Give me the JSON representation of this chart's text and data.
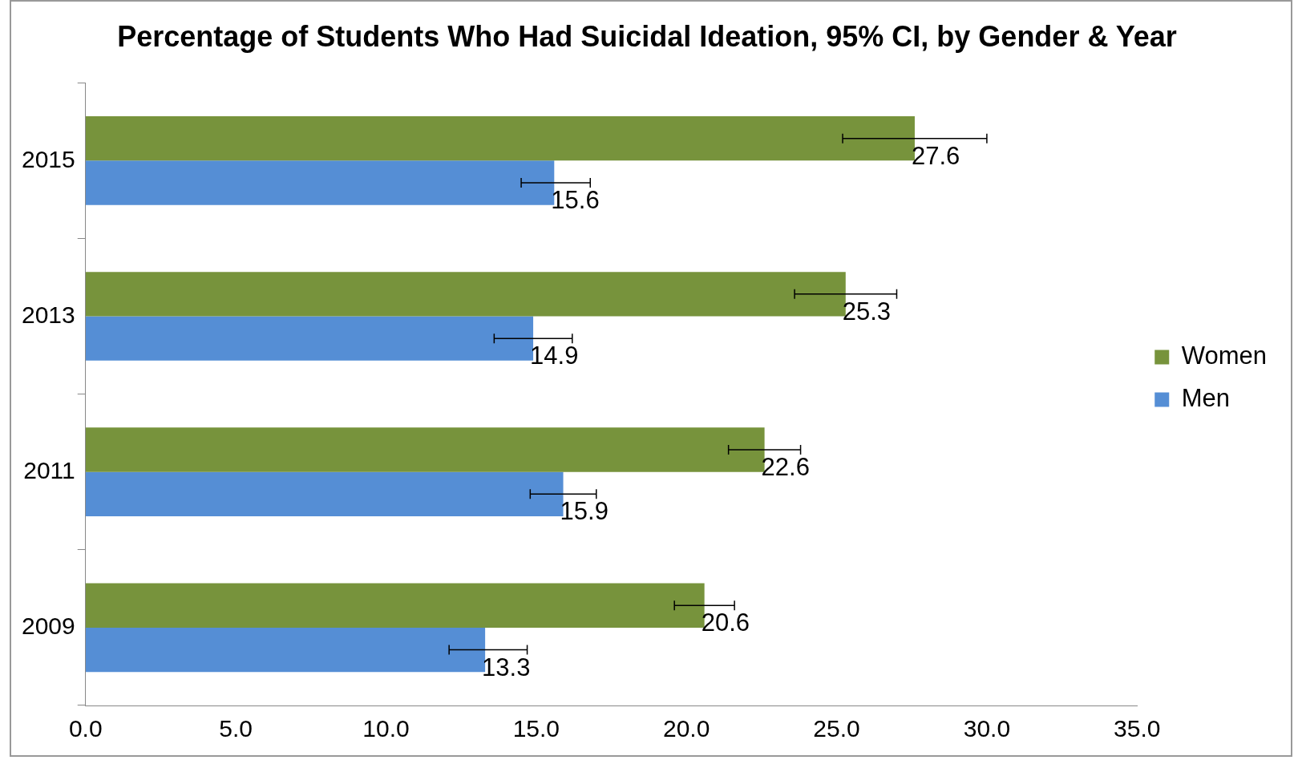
{
  "chart_data": {
    "type": "bar",
    "orientation": "horizontal",
    "title": "Percentage of Students Who Had Suicidal Ideation, 95% CI, by Gender & Year",
    "categories": [
      "2015",
      "2013",
      "2011",
      "2009"
    ],
    "series": [
      {
        "name": "Women",
        "color": "#77933c",
        "values": [
          27.6,
          25.3,
          22.6,
          20.6
        ],
        "errors": [
          [
            25.2,
            30.0
          ],
          [
            23.6,
            27.0
          ],
          [
            21.4,
            23.8
          ],
          [
            19.6,
            21.6
          ]
        ]
      },
      {
        "name": "Men",
        "color": "#558ed5",
        "values": [
          15.6,
          14.9,
          15.9,
          13.3
        ],
        "errors": [
          [
            14.5,
            16.8
          ],
          [
            13.6,
            16.2
          ],
          [
            14.8,
            17.0
          ],
          [
            12.1,
            14.7
          ]
        ]
      }
    ],
    "xlim": [
      0,
      35
    ],
    "xticks": [
      {
        "value": 0,
        "label": "0.0"
      },
      {
        "value": 5,
        "label": "5.0"
      },
      {
        "value": 10,
        "label": "10.0"
      },
      {
        "value": 15,
        "label": "15.0"
      },
      {
        "value": 20,
        "label": "20.0"
      },
      {
        "value": 25,
        "label": "25.0"
      },
      {
        "value": 30,
        "label": "30.0"
      },
      {
        "value": 35,
        "label": "35.0"
      }
    ],
    "data_labels": true,
    "grid": false,
    "legend": "right"
  }
}
